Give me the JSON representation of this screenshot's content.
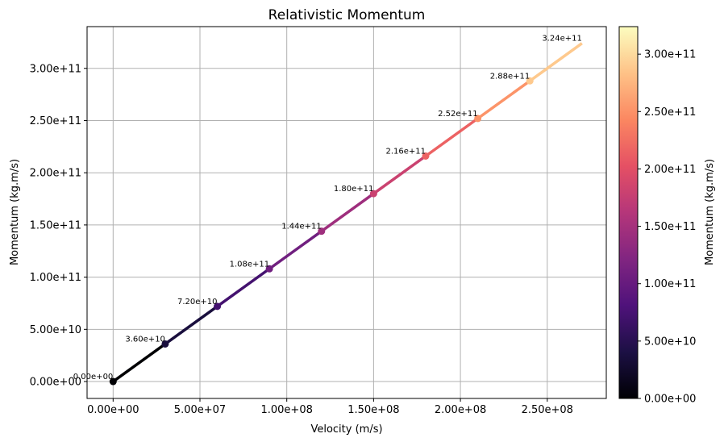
{
  "chart_data": {
    "type": "line",
    "title": "Relativistic Momentum",
    "xlabel": "Velocity (m/s)",
    "ylabel": "Momentum (kg.m/s)",
    "colorbar_label": "Momentum (kg.m/s)",
    "colormap": "magma",
    "grid": true,
    "xlim": [
      -15000000,
      284000000
    ],
    "ylim": [
      -16200000000,
      340000000000
    ],
    "xticks": [
      0,
      50000000,
      100000000,
      150000000,
      200000000,
      250000000
    ],
    "xtick_labels": [
      "0.00e+00",
      "5.00e+07",
      "1.00e+08",
      "1.50e+08",
      "2.00e+08",
      "2.50e+08"
    ],
    "yticks": [
      0,
      50000000000,
      100000000000,
      150000000000,
      200000000000,
      250000000000,
      300000000000
    ],
    "ytick_labels": [
      "0.00e+00",
      "5.00e+10",
      "1.00e+11",
      "1.50e+11",
      "2.00e+11",
      "2.50e+11",
      "3.00e+11"
    ],
    "colorbar_range": [
      0,
      324000000000
    ],
    "colorbar_ticks": [
      0,
      50000000000,
      100000000000,
      150000000000,
      200000000000,
      250000000000,
      300000000000
    ],
    "colorbar_tick_labels": [
      "0.00e+00",
      "5.00e+10",
      "1.00e+11",
      "1.50e+11",
      "2.00e+11",
      "2.50e+11",
      "3.00e+11"
    ],
    "x": [
      0,
      30000000,
      60000000,
      90000000,
      120000000,
      150000000,
      180000000,
      210000000,
      240000000,
      270000000
    ],
    "y": [
      0,
      36000000000,
      72000000000,
      108000000000,
      144000000000,
      180000000000,
      216000000000,
      252000000000,
      288000000000,
      324000000000
    ],
    "point_labels": [
      "0.00e+00",
      "3.60e+10",
      "7.20e+10",
      "1.08e+11",
      "1.44e+11",
      "1.80e+11",
      "2.16e+11",
      "2.52e+11",
      "2.88e+11",
      "3.24e+11"
    ]
  }
}
